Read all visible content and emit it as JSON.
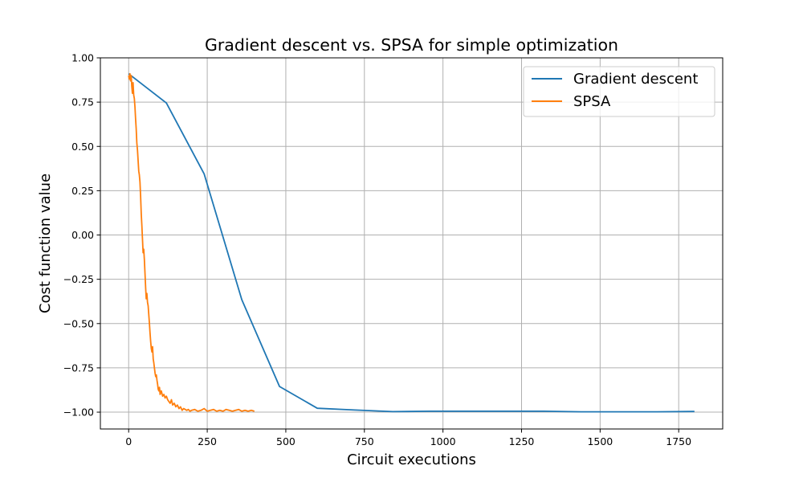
{
  "chart_data": {
    "type": "line",
    "title": "Gradient descent vs. SPSA for simple optimization",
    "xlabel": "Circuit executions",
    "ylabel": "Cost function value",
    "xlim": [
      -90,
      1890
    ],
    "ylim": [
      -1.095,
      1.0
    ],
    "xticks": [
      0,
      250,
      500,
      750,
      1000,
      1250,
      1500,
      1750
    ],
    "yticks": [
      1.0,
      0.75,
      0.5,
      0.25,
      0.0,
      -0.25,
      -0.5,
      -0.75,
      -1.0
    ],
    "xtick_labels": [
      "0",
      "250",
      "500",
      "750",
      "1000",
      "1250",
      "1500",
      "1750"
    ],
    "ytick_labels": [
      "1.00",
      "0.75",
      "0.50",
      "0.25",
      "0.00",
      "−0.25",
      "−0.50",
      "−0.75",
      "−1.00"
    ],
    "grid": true,
    "legend_position": "top-right",
    "series": [
      {
        "name": "Gradient descent",
        "color": "#1f77b4",
        "x": [
          0,
          120,
          240,
          360,
          480,
          600,
          720,
          840,
          960,
          1080,
          1200,
          1320,
          1440,
          1560,
          1680,
          1800
        ],
        "y": [
          0.91,
          0.745,
          0.345,
          -0.365,
          -0.855,
          -0.978,
          -0.988,
          -0.997,
          -0.995,
          -0.995,
          -0.995,
          -0.995,
          -0.998,
          -0.998,
          -0.998,
          -0.996
        ]
      },
      {
        "name": "SPSA",
        "color": "#ff7f0e",
        "x": [
          0,
          2,
          4,
          6,
          8,
          10,
          12,
          14,
          16,
          18,
          20,
          22,
          24,
          26,
          28,
          30,
          32,
          34,
          36,
          38,
          40,
          42,
          44,
          46,
          48,
          50,
          52,
          54,
          56,
          58,
          60,
          62,
          64,
          66,
          68,
          70,
          72,
          74,
          76,
          78,
          80,
          82,
          84,
          86,
          88,
          90,
          92,
          94,
          96,
          98,
          100,
          104,
          108,
          112,
          116,
          120,
          124,
          128,
          132,
          136,
          140,
          145,
          150,
          155,
          160,
          165,
          170,
          175,
          180,
          185,
          190,
          195,
          200,
          210,
          220,
          230,
          240,
          250,
          260,
          270,
          280,
          290,
          300,
          310,
          320,
          330,
          340,
          350,
          360,
          370,
          380,
          390,
          400
        ],
        "y": [
          0.9,
          0.88,
          0.91,
          0.87,
          0.9,
          0.84,
          0.8,
          0.86,
          0.79,
          0.77,
          0.72,
          0.66,
          0.6,
          0.52,
          0.48,
          0.42,
          0.36,
          0.34,
          0.3,
          0.22,
          0.12,
          0.05,
          -0.02,
          -0.1,
          -0.08,
          -0.14,
          -0.22,
          -0.3,
          -0.36,
          -0.33,
          -0.38,
          -0.4,
          -0.45,
          -0.5,
          -0.55,
          -0.6,
          -0.64,
          -0.66,
          -0.63,
          -0.7,
          -0.72,
          -0.75,
          -0.78,
          -0.8,
          -0.79,
          -0.82,
          -0.84,
          -0.87,
          -0.88,
          -0.86,
          -0.9,
          -0.88,
          -0.91,
          -0.9,
          -0.92,
          -0.91,
          -0.93,
          -0.94,
          -0.95,
          -0.93,
          -0.96,
          -0.95,
          -0.97,
          -0.96,
          -0.98,
          -0.97,
          -0.99,
          -0.98,
          -0.985,
          -0.99,
          -0.985,
          -0.995,
          -0.99,
          -0.985,
          -0.995,
          -0.99,
          -0.98,
          -0.995,
          -0.99,
          -0.985,
          -0.995,
          -0.99,
          -0.995,
          -0.985,
          -0.99,
          -0.995,
          -0.99,
          -0.985,
          -0.995,
          -0.99,
          -0.995,
          -0.99,
          -0.995
        ]
      }
    ]
  }
}
